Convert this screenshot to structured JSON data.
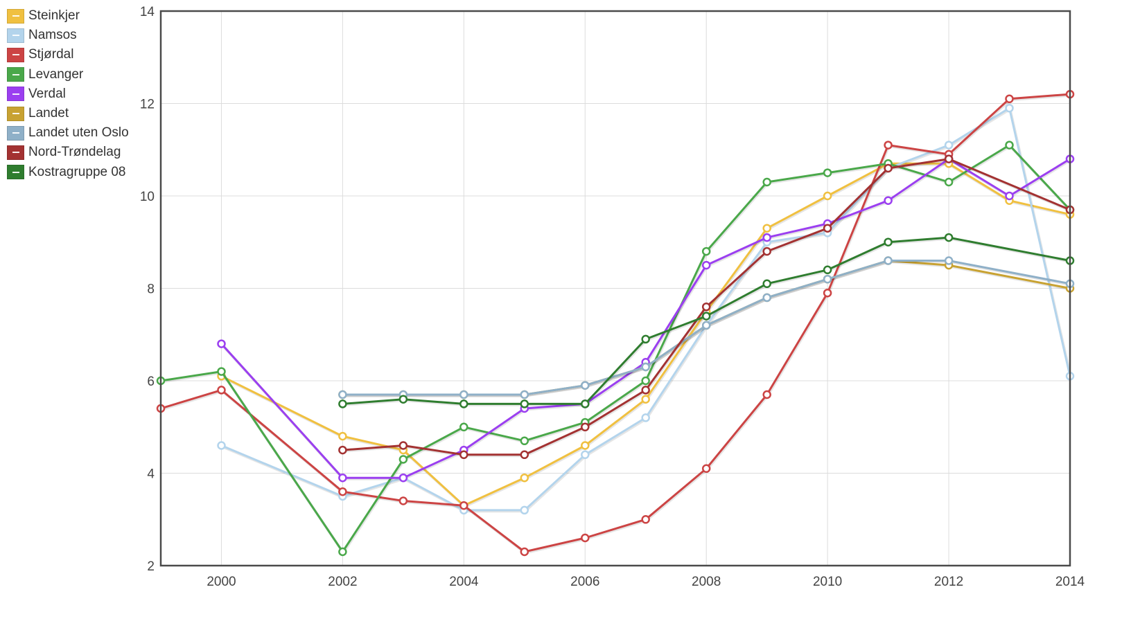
{
  "chart_data": {
    "type": "line",
    "title": "",
    "xlabel": "",
    "ylabel": "",
    "xlim": [
      1999,
      2014
    ],
    "ylim": [
      2,
      14
    ],
    "x_ticks": [
      2000,
      2002,
      2004,
      2006,
      2008,
      2010,
      2012,
      2014
    ],
    "y_ticks": [
      2,
      4,
      6,
      8,
      10,
      12,
      14
    ],
    "grid": true,
    "legend_position": "top-left",
    "x": [
      1999,
      2000,
      2001,
      2002,
      2003,
      2004,
      2005,
      2006,
      2007,
      2008,
      2009,
      2010,
      2011,
      2012,
      2013,
      2014
    ],
    "series": [
      {
        "name": "Steinkjer",
        "color": "#f0c040",
        "values": [
          null,
          6.1,
          null,
          4.8,
          4.5,
          3.3,
          3.9,
          4.6,
          5.6,
          7.5,
          9.3,
          10.0,
          10.7,
          10.7,
          9.9,
          9.6
        ]
      },
      {
        "name": "Namsos",
        "color": "#b3d4ec",
        "values": [
          null,
          4.6,
          null,
          3.5,
          3.9,
          3.2,
          3.2,
          4.4,
          5.2,
          7.2,
          9.0,
          9.2,
          10.6,
          11.1,
          11.9,
          6.1
        ]
      },
      {
        "name": "Stjørdal",
        "color": "#cc4444",
        "values": [
          5.4,
          5.8,
          null,
          3.6,
          3.4,
          3.3,
          2.3,
          2.6,
          3.0,
          4.1,
          5.7,
          7.9,
          11.1,
          10.9,
          12.1,
          12.2
        ]
      },
      {
        "name": "Levanger",
        "color": "#4aa84a",
        "values": [
          6.0,
          6.2,
          null,
          2.3,
          4.3,
          5.0,
          4.7,
          5.1,
          6.0,
          8.8,
          10.3,
          10.5,
          10.7,
          10.3,
          11.1,
          9.7
        ]
      },
      {
        "name": "Verdal",
        "color": "#9b3ff0",
        "values": [
          null,
          6.8,
          null,
          3.9,
          3.9,
          4.5,
          5.4,
          5.5,
          6.4,
          8.5,
          9.1,
          9.4,
          9.9,
          10.8,
          10.0,
          10.8
        ]
      },
      {
        "name": "Landet",
        "color": "#c8a232",
        "values": [
          null,
          null,
          null,
          5.7,
          5.7,
          5.7,
          5.7,
          5.9,
          6.3,
          7.2,
          7.8,
          8.2,
          8.6,
          8.5,
          null,
          8.0
        ]
      },
      {
        "name": "Landet uten Oslo",
        "color": "#8fb0c8",
        "values": [
          null,
          null,
          null,
          5.7,
          5.7,
          5.7,
          5.7,
          5.9,
          6.3,
          7.2,
          7.8,
          8.2,
          8.6,
          8.6,
          null,
          8.1
        ]
      },
      {
        "name": "Nord-Trøndelag",
        "color": "#a33232",
        "values": [
          null,
          null,
          null,
          4.5,
          4.6,
          4.4,
          4.4,
          5.0,
          5.8,
          7.6,
          8.8,
          9.3,
          10.6,
          10.8,
          null,
          9.7
        ]
      },
      {
        "name": "Kostragruppe 08",
        "color": "#2f7d2f",
        "values": [
          null,
          null,
          null,
          5.5,
          5.6,
          5.5,
          5.5,
          5.5,
          6.9,
          7.4,
          8.1,
          8.4,
          9.0,
          9.1,
          null,
          8.6
        ]
      }
    ]
  }
}
